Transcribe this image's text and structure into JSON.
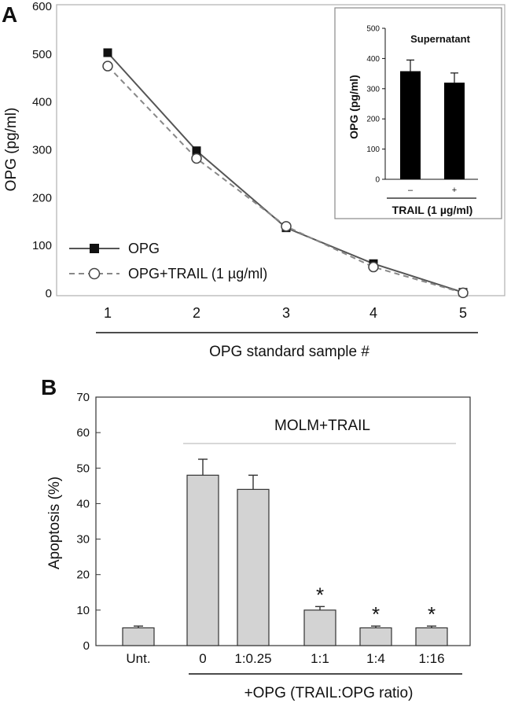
{
  "panels": {
    "a_label": "A",
    "b_label": "B"
  },
  "chart_data": [
    {
      "id": "panel-a",
      "type": "line",
      "ylabel": "OPG (pg/ml)",
      "xlabel": "OPG standard sample #",
      "ylim": [
        0,
        600
      ],
      "yticks": [
        "0",
        "100",
        "200",
        "300",
        "400",
        "500",
        "600"
      ],
      "categories": [
        "1",
        "2",
        "3",
        "4",
        "5"
      ],
      "grid": false,
      "legend_position": "bottom-left",
      "series": [
        {
          "name": "OPG",
          "marker": "filled-square",
          "line": "solid",
          "color": "#555555",
          "values": [
            503,
            298,
            137,
            62,
            2
          ]
        },
        {
          "name": "OPG+TRAIL (1 µg/ml)",
          "marker": "open-circle",
          "line": "dashed",
          "color": "#888888",
          "values": [
            475,
            282,
            140,
            55,
            1
          ]
        }
      ]
    },
    {
      "id": "panel-a-inset",
      "type": "bar",
      "title": "Supernatant",
      "ylabel": "OPG (pg/ml)",
      "xlabel": "TRAIL (1 µg/ml)",
      "ylim": [
        0,
        500
      ],
      "yticks": [
        "0",
        "100",
        "200",
        "300",
        "400",
        "500"
      ],
      "categories": [
        "–",
        "+"
      ],
      "values": [
        358,
        320
      ],
      "errors": [
        37,
        32
      ],
      "bar_color": "#000000"
    },
    {
      "id": "panel-b",
      "type": "bar",
      "ylabel": "Apoptosis (%)",
      "xlabel": "+OPG (TRAIL:OPG ratio)",
      "group_label": "MOLM+TRAIL",
      "ylim": [
        0,
        70
      ],
      "yticks": [
        "0",
        "10",
        "20",
        "30",
        "40",
        "50",
        "60",
        "70"
      ],
      "categories": [
        "Unt.",
        "0",
        "1:0.25",
        "1:1",
        "1:4",
        "1:16"
      ],
      "values": [
        5,
        48,
        44,
        10,
        5,
        5
      ],
      "errors": [
        0.5,
        4.5,
        4,
        1,
        0.5,
        0.5
      ],
      "significance": [
        "",
        "",
        "",
        "*",
        "*",
        "*"
      ],
      "bar_color": "#d3d3d3"
    }
  ]
}
